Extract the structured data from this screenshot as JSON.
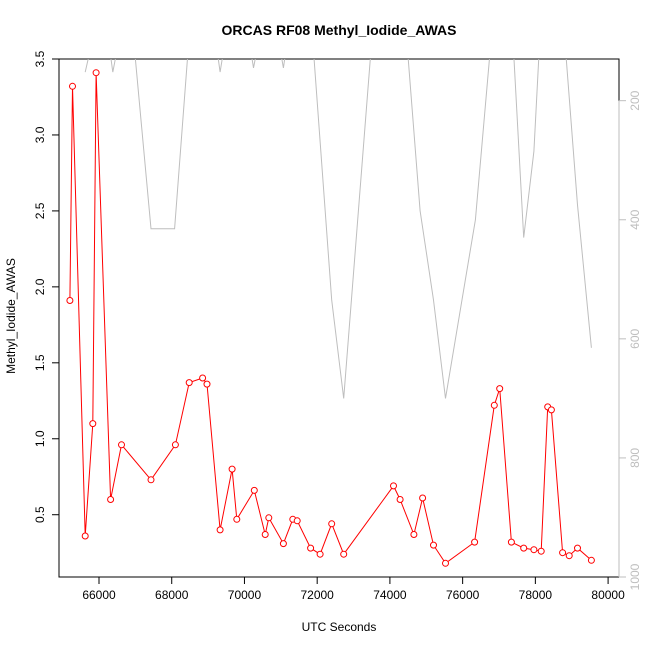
{
  "chart_data": {
    "type": "line",
    "title": "ORCAS RF08 Methyl_Iodide_AWAS",
    "xlabel": "UTC Seconds",
    "ylabel": "Methyl_Iodide_AWAS",
    "xlim": [
      64900,
      80300
    ],
    "ylim": [
      0.09,
      3.5
    ],
    "x_ticks": [
      66000,
      68000,
      70000,
      72000,
      74000,
      76000,
      78000,
      80000
    ],
    "y_ticks": [
      0.5,
      1.0,
      1.5,
      2.0,
      2.5,
      3.0,
      3.5
    ],
    "y_tick_labels": [
      "0.5",
      "1.0",
      "1.5",
      "2.0",
      "2.5",
      "3.0",
      "3.5"
    ],
    "y2_ticks": [
      200,
      400,
      600,
      800,
      1000
    ],
    "y2_lim": [
      1000,
      130
    ],
    "grid": false,
    "series": [
      {
        "kind": "methyl_iodide",
        "color": "#ff0000",
        "marker": "open-circle",
        "points": [
          [
            65200,
            1.91
          ],
          [
            65270,
            3.32
          ],
          [
            65620,
            0.36
          ],
          [
            65830,
            1.1
          ],
          [
            65920,
            3.41
          ],
          [
            66320,
            0.6
          ],
          [
            66620,
            0.96
          ],
          [
            67430,
            0.73
          ],
          [
            68100,
            0.96
          ],
          [
            68480,
            1.37
          ],
          [
            68850,
            1.4
          ],
          [
            68970,
            1.36
          ],
          [
            69330,
            0.4
          ],
          [
            69660,
            0.8
          ],
          [
            69790,
            0.47
          ],
          [
            70270,
            0.66
          ],
          [
            70570,
            0.37
          ],
          [
            70670,
            0.48
          ],
          [
            71070,
            0.31
          ],
          [
            71330,
            0.47
          ],
          [
            71450,
            0.46
          ],
          [
            71820,
            0.28
          ],
          [
            72080,
            0.24
          ],
          [
            72400,
            0.44
          ],
          [
            72730,
            0.24
          ],
          [
            74100,
            0.69
          ],
          [
            74280,
            0.6
          ],
          [
            74660,
            0.37
          ],
          [
            74900,
            0.61
          ],
          [
            75200,
            0.3
          ],
          [
            75530,
            0.18
          ],
          [
            76330,
            0.32
          ],
          [
            76870,
            1.22
          ],
          [
            77020,
            1.33
          ],
          [
            77340,
            0.32
          ],
          [
            77680,
            0.28
          ],
          [
            77960,
            0.27
          ],
          [
            78160,
            0.26
          ],
          [
            78340,
            1.21
          ],
          [
            78440,
            1.19
          ],
          [
            78750,
            0.25
          ],
          [
            78930,
            0.23
          ],
          [
            79160,
            0.28
          ],
          [
            79540,
            0.2
          ]
        ]
      },
      {
        "kind": "pressure_altitude_secondary_axis",
        "color": "#bebebe",
        "points": [
          [
            65620,
            152
          ],
          [
            66000,
            50
          ],
          [
            66150,
            50
          ],
          [
            66380,
            152
          ],
          [
            66700,
            50
          ],
          [
            66880,
            50
          ],
          [
            67430,
            415
          ],
          [
            68080,
            415
          ],
          [
            68470,
            100
          ],
          [
            68800,
            50
          ],
          [
            69100,
            50
          ],
          [
            69330,
            152
          ],
          [
            69600,
            50
          ],
          [
            70000,
            50
          ],
          [
            70250,
            145
          ],
          [
            70550,
            50
          ],
          [
            70800,
            50
          ],
          [
            71070,
            145
          ],
          [
            71300,
            50
          ],
          [
            71820,
            50
          ],
          [
            72400,
            535
          ],
          [
            72730,
            700
          ],
          [
            73500,
            100
          ],
          [
            74000,
            50
          ],
          [
            74400,
            50
          ],
          [
            74830,
            385
          ],
          [
            75200,
            535
          ],
          [
            75530,
            700
          ],
          [
            76350,
            400
          ],
          [
            76780,
            100
          ],
          [
            77000,
            50
          ],
          [
            77340,
            50
          ],
          [
            77680,
            430
          ],
          [
            77960,
            285
          ],
          [
            78160,
            50
          ],
          [
            78400,
            50
          ],
          [
            78750,
            50
          ],
          [
            79160,
            375
          ],
          [
            79540,
            615
          ]
        ]
      }
    ]
  }
}
